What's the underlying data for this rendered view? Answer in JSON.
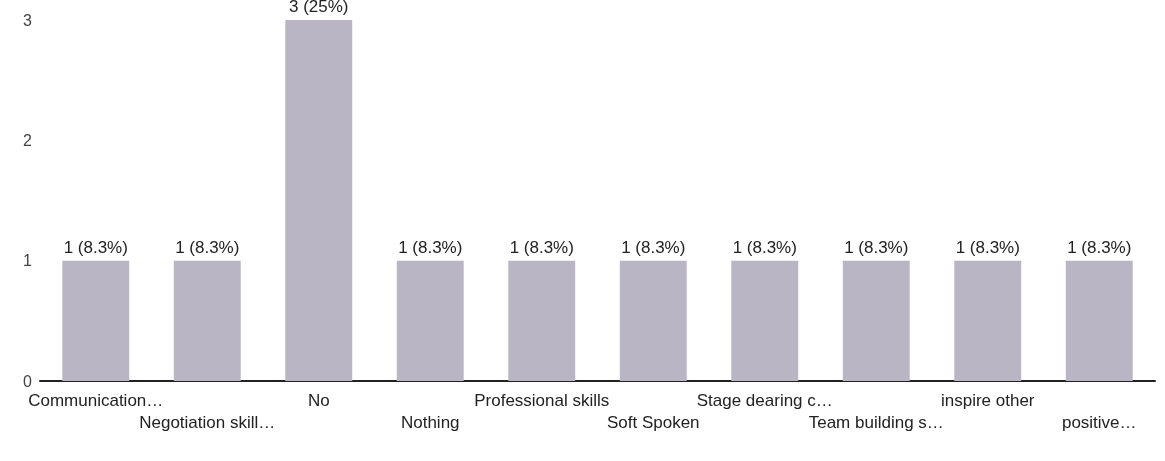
{
  "chart_data": {
    "type": "bar",
    "categories": [
      "Communication…",
      "Negotiation skill…",
      "No",
      "Nothing",
      "Professional skills",
      "Soft Spoken",
      "Stage dearing c…",
      "Team building s…",
      "inspire other",
      "positive…"
    ],
    "values": [
      1,
      1,
      3,
      1,
      1,
      1,
      1,
      1,
      1,
      1
    ],
    "value_labels": [
      "1 (8.3%)",
      "1 (8.3%)",
      "3 (25%)",
      "1 (8.3%)",
      "1 (8.3%)",
      "1 (8.3%)",
      "1 (8.3%)",
      "1 (8.3%)",
      "1 (8.3%)",
      "1 (8.3%)"
    ],
    "color": "#b9b5c5",
    "ylim": [
      0,
      3
    ],
    "yticks": [
      0,
      1,
      2,
      3
    ],
    "grid": false
  }
}
